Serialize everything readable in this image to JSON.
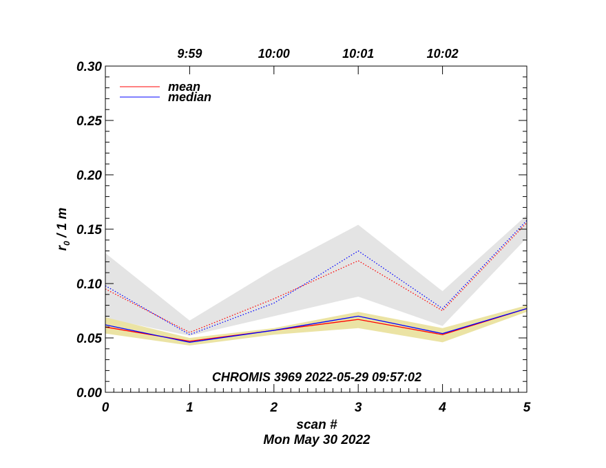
{
  "chart_data": {
    "type": "line",
    "title": "",
    "xlabel": "scan #",
    "ylabel_main": "r",
    "ylabel_sub": "0",
    "ylabel_rest": " / 1 m",
    "date_label": "Mon May 30 2022",
    "annotation": "CHROMIS 3969 2022-05-29 09:57:02",
    "x": [
      0,
      1,
      2,
      3,
      4,
      5
    ],
    "xlim": [
      0,
      5
    ],
    "ylim": [
      0,
      0.3
    ],
    "x_ticks": [
      "0",
      "1",
      "2",
      "3",
      "4",
      "5"
    ],
    "y_ticks": [
      "0.00",
      "0.05",
      "0.10",
      "0.15",
      "0.20",
      "0.25",
      "0.30"
    ],
    "top_axis_ticks": [
      {
        "label": "9:59",
        "x": 1
      },
      {
        "label": "10:00",
        "x": 2
      },
      {
        "label": "10:01",
        "x": 3
      },
      {
        "label": "10:02",
        "x": 4
      }
    ],
    "legend": {
      "position": "top-left",
      "entries": [
        {
          "name": "mean",
          "color": "#ff0000"
        },
        {
          "name": "median",
          "color": "#0000ff"
        }
      ]
    },
    "bands": [
      {
        "name": "upper range",
        "color": "#e4e4e4",
        "lower": [
          0.068,
          0.052,
          0.07,
          0.088,
          0.061,
          0.142
        ],
        "upper": [
          0.128,
          0.066,
          0.113,
          0.154,
          0.093,
          0.163
        ]
      },
      {
        "name": "lower range",
        "color": "#ebe3a4",
        "lower": [
          0.054,
          0.043,
          0.053,
          0.059,
          0.046,
          0.074
        ],
        "upper": [
          0.069,
          0.05,
          0.059,
          0.074,
          0.059,
          0.08
        ]
      }
    ],
    "series": [
      {
        "name": "mean",
        "color": "#ff0000",
        "style": "dotted",
        "values": [
          0.095,
          0.055,
          0.086,
          0.121,
          0.075,
          0.156
        ]
      },
      {
        "name": "median",
        "color": "#0000ff",
        "style": "dotted",
        "values": [
          0.098,
          0.053,
          0.082,
          0.13,
          0.077,
          0.158
        ]
      },
      {
        "name": "mean",
        "color": "#ff0000",
        "style": "solid",
        "values": [
          0.06,
          0.047,
          0.057,
          0.067,
          0.053,
          0.077
        ]
      },
      {
        "name": "median",
        "color": "#0000ff",
        "style": "solid",
        "values": [
          0.062,
          0.046,
          0.057,
          0.07,
          0.054,
          0.077
        ]
      }
    ]
  }
}
